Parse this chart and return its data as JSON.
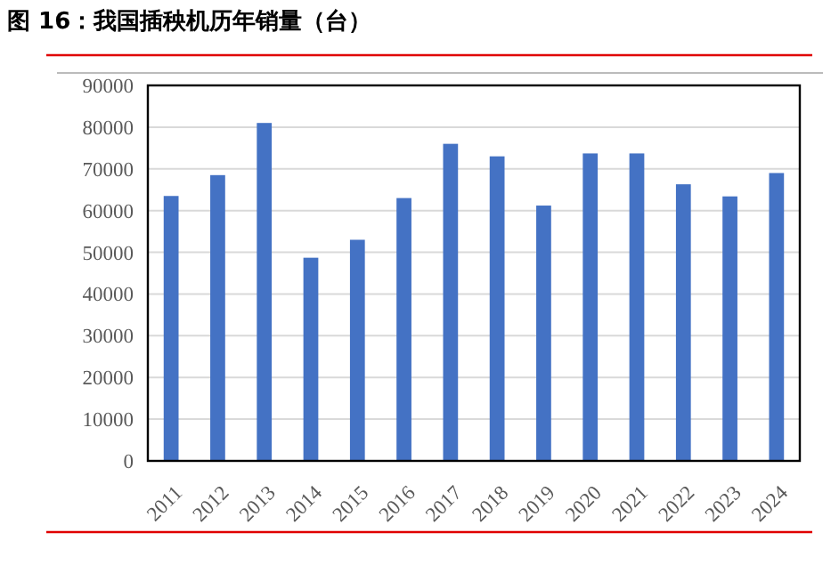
{
  "chart_data": {
    "type": "bar",
    "title": "图 16：我国插秧机历年销量（台）",
    "categories": [
      "2011",
      "2012",
      "2013",
      "2014",
      "2015",
      "2016",
      "2017",
      "2018",
      "2019",
      "2020",
      "2021",
      "2022",
      "2023",
      "2024"
    ],
    "values": [
      63500,
      68500,
      81000,
      48700,
      53000,
      63000,
      76000,
      73000,
      61200,
      73700,
      73700,
      66300,
      63400,
      69000
    ],
    "color": "#4472c4",
    "ylim": [
      0,
      90000
    ],
    "yticks": [
      0,
      10000,
      20000,
      30000,
      40000,
      50000,
      60000,
      70000,
      80000,
      90000
    ],
    "grid": "y"
  }
}
